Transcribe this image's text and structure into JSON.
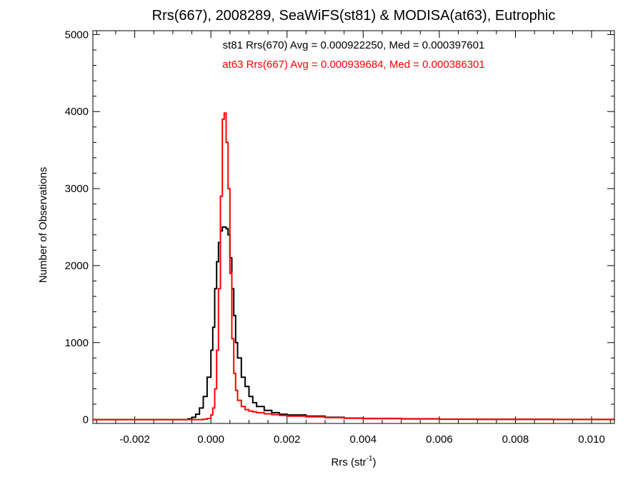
{
  "chart_data": {
    "type": "line",
    "title": "Rrs(667), 2008289, SeaWiFS(st81) & MODISA(at63), Eutrophic",
    "xlabel_main": "Rrs (str",
    "xlabel_sup": "-1",
    "xlabel_close": ")",
    "ylabel": "Number of Observations",
    "xlim": [
      -0.0031,
      0.0106
    ],
    "ylim": [
      -50,
      5050
    ],
    "xticks": [
      -0.002,
      0.0,
      0.002,
      0.004,
      0.006,
      0.008,
      0.01
    ],
    "xtick_labels": [
      "-0.002",
      "0.000",
      "0.002",
      "0.004",
      "0.006",
      "0.008",
      "0.010"
    ],
    "yticks": [
      0,
      1000,
      2000,
      3000,
      4000,
      5000
    ],
    "ytick_labels": [
      "0",
      "1000",
      "2000",
      "3000",
      "4000",
      "5000"
    ],
    "annotations": [
      {
        "text": "st81 Rrs(670) Avg = 0.000922250, Med = 0.000397601",
        "color": "#000000"
      },
      {
        "text": "at63 Rrs(667) Avg = 0.000939684, Med = 0.000386301",
        "color": "#ff0000"
      }
    ],
    "series": [
      {
        "color": "#000000",
        "points": [
          [
            -0.0031,
            0
          ],
          [
            -0.0008,
            0
          ],
          [
            -0.0006,
            10
          ],
          [
            -0.0005,
            30
          ],
          [
            -0.0004,
            70
          ],
          [
            -0.0003,
            150
          ],
          [
            -0.0002,
            300
          ],
          [
            -0.0001,
            550
          ],
          [
            0.0,
            900
          ],
          [
            5e-05,
            1200
          ],
          [
            0.0001,
            1700
          ],
          [
            0.00015,
            2050
          ],
          [
            0.0002,
            2300
          ],
          [
            0.00025,
            2450
          ],
          [
            0.0003,
            2500
          ],
          [
            0.00035,
            2500
          ],
          [
            0.0004,
            2480
          ],
          [
            0.00045,
            2400
          ],
          [
            0.0005,
            2100
          ],
          [
            0.00055,
            1700
          ],
          [
            0.0006,
            1350
          ],
          [
            0.00065,
            1000
          ],
          [
            0.0007,
            800
          ],
          [
            0.0008,
            550
          ],
          [
            0.0009,
            430
          ],
          [
            0.001,
            300
          ],
          [
            0.0011,
            220
          ],
          [
            0.0012,
            170
          ],
          [
            0.0014,
            120
          ],
          [
            0.0016,
            90
          ],
          [
            0.0018,
            70
          ],
          [
            0.002,
            60
          ],
          [
            0.0025,
            45
          ],
          [
            0.003,
            30
          ],
          [
            0.0035,
            20
          ],
          [
            0.004,
            15
          ],
          [
            0.005,
            10
          ],
          [
            0.006,
            6
          ],
          [
            0.007,
            4
          ],
          [
            0.008,
            3
          ],
          [
            0.009,
            2
          ],
          [
            0.0106,
            1
          ]
        ]
      },
      {
        "color": "#ff0000",
        "points": [
          [
            -0.0031,
            0
          ],
          [
            -0.0004,
            0
          ],
          [
            -0.0002,
            5
          ],
          [
            -0.0001,
            15
          ],
          [
            0.0,
            60
          ],
          [
            5e-05,
            150
          ],
          [
            0.0001,
            400
          ],
          [
            0.00015,
            900
          ],
          [
            0.0002,
            1700
          ],
          [
            0.00025,
            2900
          ],
          [
            0.0003,
            3900
          ],
          [
            0.00035,
            3980
          ],
          [
            0.0004,
            3600
          ],
          [
            0.00045,
            3000
          ],
          [
            0.0005,
            1900
          ],
          [
            0.00055,
            1050
          ],
          [
            0.0006,
            600
          ],
          [
            0.00065,
            380
          ],
          [
            0.0007,
            250
          ],
          [
            0.0008,
            170
          ],
          [
            0.0009,
            130
          ],
          [
            0.001,
            110
          ],
          [
            0.0011,
            100
          ],
          [
            0.0012,
            90
          ],
          [
            0.0014,
            75
          ],
          [
            0.0016,
            65
          ],
          [
            0.0018,
            55
          ],
          [
            0.002,
            45
          ],
          [
            0.0025,
            35
          ],
          [
            0.003,
            25
          ],
          [
            0.0035,
            18
          ],
          [
            0.004,
            12
          ],
          [
            0.005,
            8
          ],
          [
            0.006,
            5
          ],
          [
            0.007,
            4
          ],
          [
            0.008,
            3
          ],
          [
            0.009,
            2
          ],
          [
            0.0106,
            1
          ]
        ]
      }
    ]
  }
}
